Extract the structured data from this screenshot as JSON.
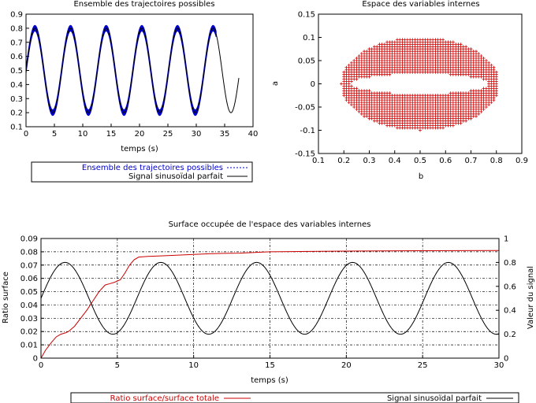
{
  "chart_data": [
    {
      "type": "line",
      "title": "Ensemble des trajectoires possibles",
      "xlabel": "temps (s)",
      "ylabel": "",
      "xlim": [
        0,
        40
      ],
      "ylim": [
        0.1,
        0.9
      ],
      "xticks": [
        "0",
        "5",
        "10",
        "15",
        "20",
        "25",
        "30",
        "35",
        "40"
      ],
      "yticks": [
        "0.1",
        "0.2",
        "0.3",
        "0.4",
        "0.5",
        "0.6",
        "0.7",
        "0.8",
        "0.9"
      ],
      "legend_position": "below",
      "series": [
        {
          "name": "Ensemble des trajectoires possibles",
          "color": "#0000cc",
          "style": "dashed",
          "x_range": [
            0,
            33.5
          ],
          "offset": 0.5,
          "amplitude": 0.3,
          "period": 6.28,
          "band": 0.02
        },
        {
          "name": "Signal sinusoïdal parfait",
          "color": "#000000",
          "style": "solid",
          "x_range": [
            0,
            37.5
          ],
          "offset": 0.5,
          "amplitude": 0.3,
          "period": 6.28
        }
      ]
    },
    {
      "type": "scatter",
      "title": "Espace des variables internes",
      "xlabel": "b",
      "ylabel": "a",
      "xlim": [
        0.1,
        0.9
      ],
      "ylim": [
        -0.15,
        0.15
      ],
      "xticks": [
        "0.1",
        "0.2",
        "0.3",
        "0.4",
        "0.5",
        "0.6",
        "0.7",
        "0.8",
        "0.9"
      ],
      "yticks": [
        "-0.15",
        "-0.1",
        "-0.05",
        "0",
        "0.05",
        "0.1",
        "0.15"
      ],
      "marker": "+",
      "color": "#cc0000",
      "region": {
        "shape": "ring",
        "center": [
          0.5,
          0
        ],
        "outer_radii": [
          0.31,
          0.1
        ],
        "inner_radii": [
          0.27,
          0.022
        ]
      }
    },
    {
      "type": "line",
      "title": "Surface occupée de l'espace des variables internes",
      "xlabel": "temps (s)",
      "ylabel": "Ratio surface",
      "y2label": "Valeur du signal",
      "xlim": [
        0,
        30
      ],
      "ylim": [
        0,
        0.09
      ],
      "y2lim": [
        0,
        1
      ],
      "grid": true,
      "xticks": [
        "0",
        "5",
        "10",
        "15",
        "20",
        "25",
        "30"
      ],
      "yticks": [
        "0",
        "0.01",
        "0.02",
        "0.03",
        "0.04",
        "0.05",
        "0.06",
        "0.07",
        "0.08",
        "0.09"
      ],
      "y2ticks": [
        "0",
        "0.2",
        "0.4",
        "0.6",
        "0.8",
        "1"
      ],
      "legend_position": "below",
      "series": [
        {
          "name": "Ratio surface/surface totale",
          "color": "#cc0000",
          "axis": "left",
          "x": [
            0,
            0.3,
            0.7,
            1.0,
            1.3,
            1.6,
            1.8,
            2.2,
            2.6,
            3.0,
            3.4,
            3.8,
            4.2,
            4.5,
            4.8,
            5.2,
            5.5,
            5.8,
            6.1,
            6.4,
            7,
            8,
            9,
            10,
            11,
            12,
            13,
            14,
            15,
            17,
            20,
            25,
            30
          ],
          "y": [
            0,
            0.006,
            0.012,
            0.016,
            0.018,
            0.019,
            0.02,
            0.024,
            0.03,
            0.036,
            0.043,
            0.05,
            0.055,
            0.056,
            0.057,
            0.059,
            0.064,
            0.07,
            0.074,
            0.076,
            0.0765,
            0.077,
            0.0775,
            0.078,
            0.0785,
            0.0788,
            0.079,
            0.0795,
            0.08,
            0.0802,
            0.0805,
            0.0808,
            0.081
          ]
        },
        {
          "name": "Signal sinusoïdal parfait",
          "color": "#000000",
          "axis": "right",
          "offset": 0.5,
          "amplitude": 0.3,
          "period": 6.28,
          "x_range": [
            0,
            30
          ]
        }
      ]
    }
  ]
}
